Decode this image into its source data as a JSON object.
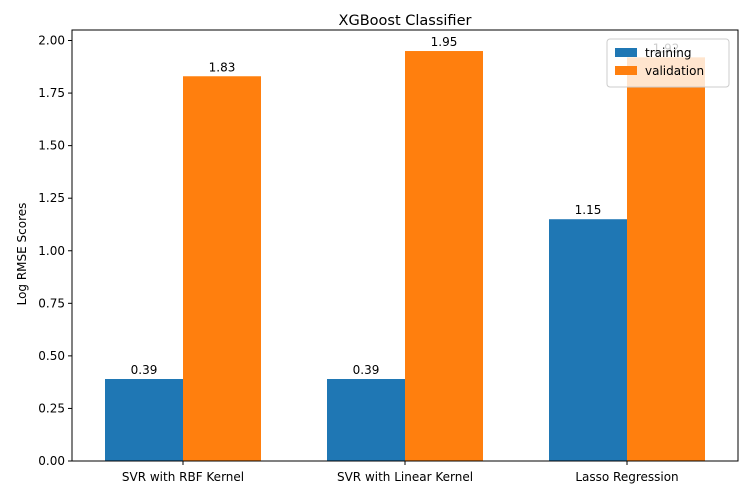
{
  "chart_data": {
    "type": "bar",
    "title": "XGBoost Classifier",
    "xlabel": "",
    "ylabel": "Log RMSE Scores",
    "categories": [
      "SVR with RBF Kernel",
      "SVR with Linear Kernel",
      "Lasso Regression"
    ],
    "series": [
      {
        "name": "training",
        "values": [
          0.39,
          0.39,
          1.15
        ],
        "labels": [
          "0.39",
          "0.39",
          "1.15"
        ],
        "color": "#1f77b4"
      },
      {
        "name": "validation",
        "values": [
          1.83,
          1.95,
          1.92
        ],
        "labels": [
          "1.83",
          "1.95",
          "1.92"
        ],
        "color": "#ff7f0e"
      }
    ],
    "ylim": [
      0,
      2.05
    ],
    "yticks": [
      0.0,
      0.25,
      0.5,
      0.75,
      1.0,
      1.25,
      1.5,
      1.75,
      2.0
    ],
    "ytick_labels": [
      "0.00",
      "0.25",
      "0.50",
      "0.75",
      "1.00",
      "1.25",
      "1.50",
      "1.75",
      "2.00"
    ],
    "grid": false,
    "legend_position": "top-right"
  }
}
